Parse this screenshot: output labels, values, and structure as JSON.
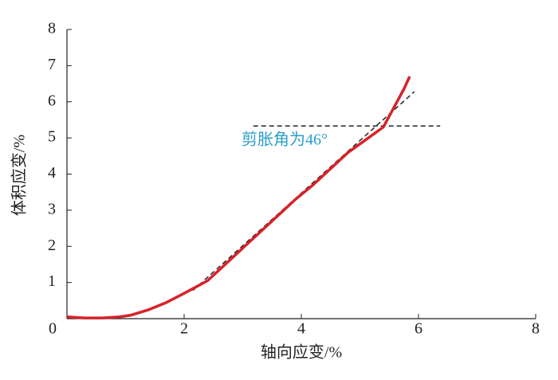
{
  "chart_data": {
    "type": "line",
    "x_label": "轴向应变/%",
    "y_label": "体积应变/%",
    "annotation": "剪胀角为46°",
    "annotation_color": "#2a9fc9",
    "xlim": [
      0,
      8
    ],
    "ylim": [
      0,
      8
    ],
    "xticks": [
      0,
      2,
      4,
      6,
      8
    ],
    "yticks": [
      1,
      2,
      3,
      4,
      5,
      6,
      7,
      8
    ],
    "series": [
      {
        "color": "#d6232a",
        "x": [
          0,
          0.3,
          0.6,
          0.9,
          1.1,
          1.4,
          1.7,
          2.0,
          2.4,
          2.7,
          3.0,
          3.3,
          3.6,
          3.9,
          4.2,
          4.5,
          4.8,
          5.1,
          5.4,
          5.6,
          5.75,
          5.85
        ],
        "values": [
          0.05,
          0.02,
          0.02,
          0.05,
          0.1,
          0.25,
          0.45,
          0.7,
          1.05,
          1.5,
          1.95,
          2.4,
          2.85,
          3.3,
          3.7,
          4.15,
          4.6,
          4.95,
          5.3,
          5.9,
          6.35,
          6.7
        ]
      }
    ],
    "reference_lines": [
      {
        "color": "#222222",
        "x": [
          2.15,
          5.93
        ],
        "values": [
          0.78,
          6.28
        ]
      },
      {
        "color": "#222222",
        "x": [
          3.18,
          6.37
        ],
        "values": [
          5.33,
          5.33
        ]
      }
    ]
  }
}
